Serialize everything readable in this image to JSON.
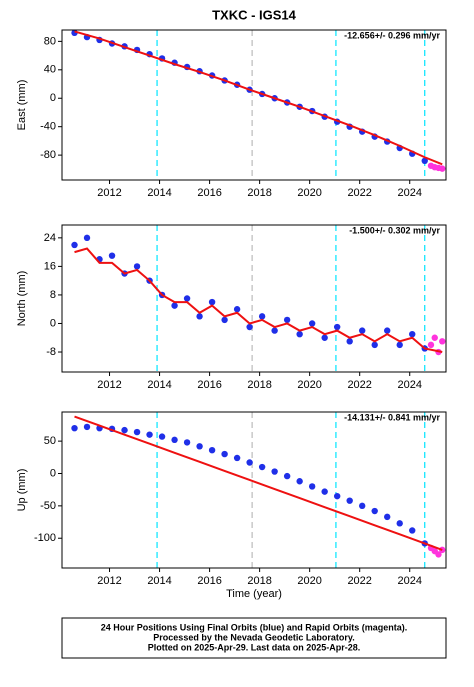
{
  "title": "TXKC - IGS14",
  "offsets": [
    {
      "x": 2013.9,
      "color": "#00e5ff"
    },
    {
      "x": 2017.7,
      "color": "#bbbbbb"
    },
    {
      "x": 2021.05,
      "color": "#00e5ff"
    },
    {
      "x": 2024.6,
      "color": "#00e5ff"
    }
  ],
  "chart_data": [
    {
      "type": "scatter",
      "ylabel": "East (mm)",
      "annotation": "-12.656+/- 0.296 mm/yr",
      "xlim": [
        2010.1,
        2025.45
      ],
      "xticks": [
        2012,
        2014,
        2016,
        2018,
        2020,
        2022,
        2024
      ],
      "ylim": [
        -115,
        96
      ],
      "yticks": [
        -80,
        -40,
        0,
        40,
        80
      ],
      "series": [
        {
          "color": "#1f2fe8",
          "style": "points",
          "x": [
            2010.6,
            2011.1,
            2011.6,
            2012.1,
            2012.6,
            2013.1,
            2013.6,
            2014.1,
            2014.6,
            2015.1,
            2015.6,
            2016.1,
            2016.6,
            2017.1,
            2017.6,
            2018.1,
            2018.6,
            2019.1,
            2019.6,
            2020.1,
            2020.6,
            2021.1,
            2021.6,
            2022.1,
            2022.6,
            2023.1,
            2023.6,
            2024.1,
            2024.6
          ],
          "values": [
            92,
            86,
            82,
            77,
            73,
            68,
            62,
            56,
            50,
            44,
            38,
            32,
            25,
            19,
            12,
            6,
            0,
            -6,
            -12,
            -18,
            -26,
            -33,
            -40,
            -47,
            -54,
            -61,
            -70,
            -78,
            -88
          ]
        },
        {
          "color": "#ff33dd",
          "style": "points",
          "x": [
            2024.85,
            2025.0,
            2025.15,
            2025.3
          ],
          "values": [
            -95,
            -97,
            -98,
            -99
          ]
        },
        {
          "color": "#ee1111",
          "style": "line",
          "x": [
            2010.6,
            2011.6,
            2012.6,
            2013.6,
            2014.6,
            2015.6,
            2016.6,
            2017.6,
            2018.6,
            2019.6,
            2020.6,
            2021.6,
            2022.6,
            2023.6,
            2024.6,
            2025.3
          ],
          "values": [
            94,
            84,
            72,
            60,
            48,
            37,
            25,
            12,
            0,
            -12,
            -25,
            -38,
            -52,
            -67,
            -83,
            -93
          ]
        }
      ]
    },
    {
      "type": "scatter",
      "ylabel": "North (mm)",
      "annotation": "-1.500+/- 0.302 mm/yr",
      "xlim": [
        2010.1,
        2025.45
      ],
      "xticks": [
        2012,
        2014,
        2016,
        2018,
        2020,
        2022,
        2024
      ],
      "ylim": [
        -13.6,
        27.6
      ],
      "yticks": [
        -8,
        0,
        8,
        16,
        24
      ],
      "series": [
        {
          "color": "#1f2fe8",
          "style": "points",
          "x": [
            2010.6,
            2011.1,
            2011.6,
            2012.1,
            2012.6,
            2013.1,
            2013.6,
            2014.1,
            2014.6,
            2015.1,
            2015.6,
            2016.1,
            2016.6,
            2017.1,
            2017.6,
            2018.1,
            2018.6,
            2019.1,
            2019.6,
            2020.1,
            2020.6,
            2021.1,
            2021.6,
            2022.1,
            2022.6,
            2023.1,
            2023.6,
            2024.1,
            2024.6
          ],
          "values": [
            22,
            24,
            18,
            19,
            14,
            16,
            12,
            8,
            5,
            7,
            2,
            6,
            1,
            4,
            -1,
            2,
            -2,
            1,
            -3,
            0,
            -4,
            -1,
            -5,
            -2,
            -6,
            -2,
            -6,
            -3,
            -7
          ]
        },
        {
          "color": "#ff33dd",
          "style": "points",
          "x": [
            2024.85,
            2025.0,
            2025.15,
            2025.3
          ],
          "values": [
            -6,
            -4,
            -8,
            -5
          ]
        },
        {
          "color": "#ee1111",
          "style": "line",
          "x": [
            2010.6,
            2011.1,
            2011.6,
            2012.1,
            2012.6,
            2013.1,
            2013.6,
            2014.1,
            2014.6,
            2015.1,
            2015.6,
            2016.1,
            2016.6,
            2017.1,
            2017.6,
            2018.1,
            2018.6,
            2019.1,
            2019.6,
            2020.1,
            2020.6,
            2021.1,
            2021.6,
            2022.1,
            2022.6,
            2023.1,
            2023.6,
            2024.1,
            2024.6,
            2025.3
          ],
          "values": [
            20,
            21,
            17,
            17,
            14,
            15,
            12,
            8,
            6,
            6,
            3,
            5,
            2,
            3,
            0,
            1,
            -1,
            0,
            -2,
            -1,
            -3,
            -2,
            -4,
            -3,
            -5,
            -3,
            -5,
            -4,
            -7,
            -8
          ]
        }
      ]
    },
    {
      "type": "scatter",
      "ylabel": "Up (mm)",
      "annotation": "-14.131+/- 0.841 mm/yr",
      "xlabel": "Time (year)",
      "xlim": [
        2010.1,
        2025.45
      ],
      "xticks": [
        2012,
        2014,
        2016,
        2018,
        2020,
        2022,
        2024
      ],
      "ylim": [
        -146,
        95
      ],
      "yticks": [
        -100,
        -50,
        0,
        50
      ],
      "series": [
        {
          "color": "#1f2fe8",
          "style": "points",
          "x": [
            2010.6,
            2011.1,
            2011.6,
            2012.1,
            2012.6,
            2013.1,
            2013.6,
            2014.1,
            2014.6,
            2015.1,
            2015.6,
            2016.1,
            2016.6,
            2017.1,
            2017.6,
            2018.1,
            2018.6,
            2019.1,
            2019.6,
            2020.1,
            2020.6,
            2021.1,
            2021.6,
            2022.1,
            2022.6,
            2023.1,
            2023.6,
            2024.1,
            2024.6
          ],
          "values": [
            70,
            72,
            70,
            69,
            67,
            64,
            60,
            57,
            52,
            48,
            42,
            36,
            30,
            24,
            17,
            10,
            3,
            -4,
            -12,
            -20,
            -28,
            -35,
            -42,
            -50,
            -58,
            -67,
            -77,
            -88,
            -108
          ]
        },
        {
          "color": "#ff33dd",
          "style": "points",
          "x": [
            2024.85,
            2025.0,
            2025.15,
            2025.3
          ],
          "values": [
            -115,
            -120,
            -125,
            -118
          ]
        },
        {
          "color": "#ee1111",
          "style": "line",
          "x": [
            2010.6,
            2011.6,
            2012.6,
            2013.6,
            2014.6,
            2015.6,
            2016.6,
            2017.6,
            2018.6,
            2019.6,
            2020.6,
            2021.6,
            2022.6,
            2023.6,
            2024.6,
            2025.3
          ],
          "values": [
            88,
            74,
            60,
            46,
            32,
            18,
            4,
            -10,
            -24,
            -38,
            -52,
            -66,
            -80,
            -94,
            -108,
            -118
          ]
        }
      ]
    }
  ],
  "footer": [
    "24 Hour Positions Using Final Orbits (blue) and Rapid Orbits (magenta).",
    "Processed by the Nevada Geodetic Laboratory.",
    "Plotted on 2025-Apr-29. Last data on 2025-Apr-28."
  ]
}
